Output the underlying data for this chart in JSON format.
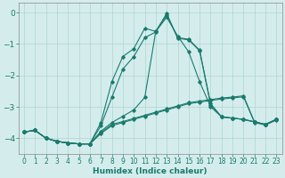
{
  "xlabel": "Humidex (Indice chaleur)",
  "xlim": [
    -0.5,
    23.5
  ],
  "ylim": [
    -4.5,
    0.3
  ],
  "yticks": [
    0,
    -1,
    -2,
    -3,
    -4
  ],
  "xticks": [
    0,
    1,
    2,
    3,
    4,
    5,
    6,
    7,
    8,
    9,
    10,
    11,
    12,
    13,
    14,
    15,
    16,
    17,
    18,
    19,
    20,
    21,
    22,
    23
  ],
  "bg_color": "#d4edec",
  "grid_color": "#aed4d2",
  "line_color": "#1a7a6e",
  "line1": [
    -3.8,
    -3.75,
    -4.0,
    -4.1,
    -4.15,
    -4.18,
    -4.18,
    -3.85,
    -3.6,
    -3.5,
    -3.4,
    -3.3,
    -3.2,
    -3.1,
    -3.0,
    -2.9,
    -2.85,
    -2.8,
    -2.75,
    -2.72,
    -2.68,
    -3.5,
    -3.58,
    -3.42
  ],
  "line2": [
    -3.8,
    -3.75,
    -4.0,
    -4.1,
    -4.15,
    -4.18,
    -4.18,
    -3.82,
    -3.56,
    -3.47,
    -3.37,
    -3.27,
    -3.17,
    -3.07,
    -2.97,
    -2.87,
    -2.82,
    -2.77,
    -2.72,
    -2.69,
    -2.65,
    -3.48,
    -3.56,
    -3.4
  ],
  "line3": [
    -3.8,
    -3.75,
    -4.0,
    -4.1,
    -4.15,
    -4.18,
    -4.18,
    -3.78,
    -3.5,
    -3.3,
    -3.1,
    -2.7,
    -0.6,
    -0.15,
    -0.75,
    -1.25,
    -2.2,
    -3.0,
    -3.32,
    -3.36,
    -3.4,
    -3.48,
    -3.56,
    -3.4
  ],
  "line4": [
    -3.8,
    -3.75,
    -4.0,
    -4.1,
    -4.15,
    -4.18,
    -4.18,
    -3.6,
    -2.7,
    -1.8,
    -1.4,
    -0.8,
    -0.62,
    -0.08,
    -0.8,
    -0.85,
    -1.2,
    -2.9,
    -3.32,
    -3.36,
    -3.4,
    -3.48,
    -3.56,
    -3.4
  ],
  "line5": [
    -3.8,
    -3.75,
    -4.0,
    -4.1,
    -4.15,
    -4.18,
    -4.18,
    -3.5,
    -2.2,
    -1.4,
    -1.15,
    -0.5,
    -0.6,
    -0.03,
    -0.82,
    -0.87,
    -1.22,
    -2.93,
    -3.32,
    -3.36,
    -3.4,
    -3.48,
    -3.56,
    -3.4
  ]
}
